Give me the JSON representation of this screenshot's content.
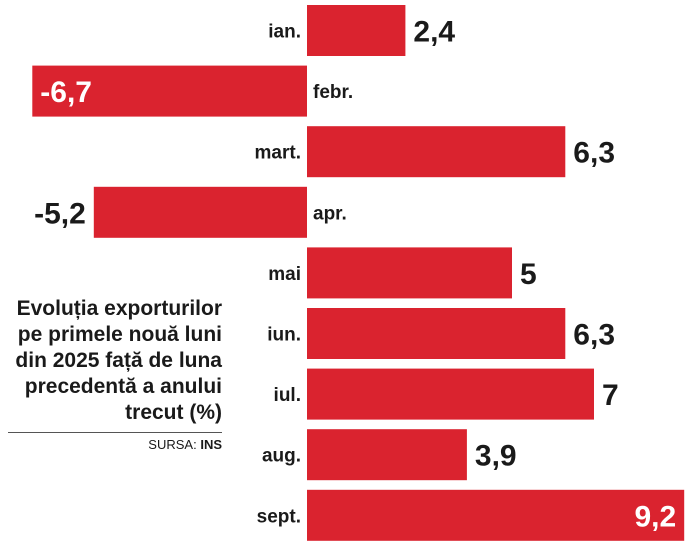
{
  "chart_data": {
    "type": "bar",
    "orientation": "horizontal",
    "categories": [
      "ian.",
      "febr.",
      "mart.",
      "apr.",
      "mai",
      "iun.",
      "iul.",
      "aug.",
      "sept."
    ],
    "values": [
      2.4,
      -6.7,
      6.3,
      -5.2,
      5,
      6.3,
      7,
      3.9,
      9.2
    ],
    "value_labels": [
      "2,4",
      "-6,7",
      "6,3",
      "-5,2",
      "5",
      "6,3",
      "7",
      "3,9",
      "9,2"
    ],
    "title": "Evoluția exporturilor pe primele nouă luni din 2025 față de luna precedentă a anului trecut (%)",
    "source_label": "SURSA:",
    "source_value": "INS",
    "bar_color": "#da232f",
    "grid": false
  }
}
